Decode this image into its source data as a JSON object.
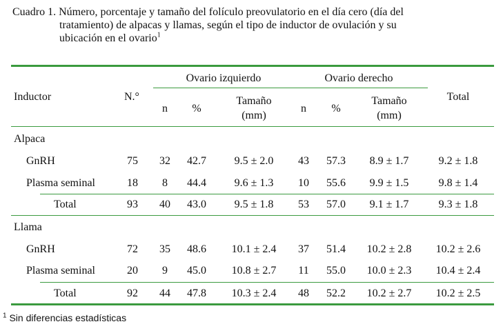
{
  "caption": {
    "line1": "Cuadro 1. Número, porcentaje y tamaño del folículo preovulatorio en el día cero (día del",
    "line2": "tratamiento) de alpacas y llamas, según el tipo de inductor de ovulación y su",
    "line3": "ubicación en el ovario",
    "sup": "1"
  },
  "headers": {
    "inductor": "Inductor",
    "numero": "N.°",
    "ovario_izq": "Ovario izquierdo",
    "ovario_der": "Ovario derecho",
    "total": "Total",
    "n": "n",
    "pct": "%",
    "tamano": "Tamaño",
    "mm": "(mm)"
  },
  "groups": [
    {
      "name": "Alpaca",
      "rows": [
        {
          "label": "GnRH",
          "num": "75",
          "izq_n": "32",
          "izq_pct": "42.7",
          "izq_tam": "9.5 ± 2.0",
          "der_n": "43",
          "der_pct": "57.3",
          "der_tam": "8.9 ± 1.7",
          "total": "9.2 ± 1.8"
        },
        {
          "label": "Plasma seminal",
          "num": "18",
          "izq_n": "8",
          "izq_pct": "44.4",
          "izq_tam": "9.6 ± 1.3",
          "der_n": "10",
          "der_pct": "55.6",
          "der_tam": "9.9 ± 1.5",
          "total": "9.8 ± 1.4"
        }
      ],
      "total": {
        "label": "Total",
        "num": "93",
        "izq_n": "40",
        "izq_pct": "43.0",
        "izq_tam": "9.5 ± 1.8",
        "der_n": "53",
        "der_pct": "57.0",
        "der_tam": "9.1 ± 1.7",
        "total": "9.3 ± 1.8"
      }
    },
    {
      "name": "Llama",
      "rows": [
        {
          "label": "GnRH",
          "num": "72",
          "izq_n": "35",
          "izq_pct": "48.6",
          "izq_tam": "10.1 ± 2.4",
          "der_n": "37",
          "der_pct": "51.4",
          "der_tam": "10.2 ± 2.8",
          "total": "10.2 ± 2.6"
        },
        {
          "label": "Plasma seminal",
          "num": "20",
          "izq_n": "9",
          "izq_pct": "45.0",
          "izq_tam": "10.8 ± 2.7",
          "der_n": "11",
          "der_pct": "55.0",
          "der_tam": "10.0 ± 2.3",
          "total": "10.4 ± 2.4"
        }
      ],
      "total": {
        "label": "Total",
        "num": "92",
        "izq_n": "44",
        "izq_pct": "47.8",
        "izq_tam": "10.3 ± 2.4",
        "der_n": "48",
        "der_pct": "52.2",
        "der_tam": "10.2 ± 2.7",
        "total": "10.2 ± 2.5"
      }
    }
  ],
  "footnote": {
    "sup": "1",
    "text": "Sin diferencias estadísticas"
  }
}
